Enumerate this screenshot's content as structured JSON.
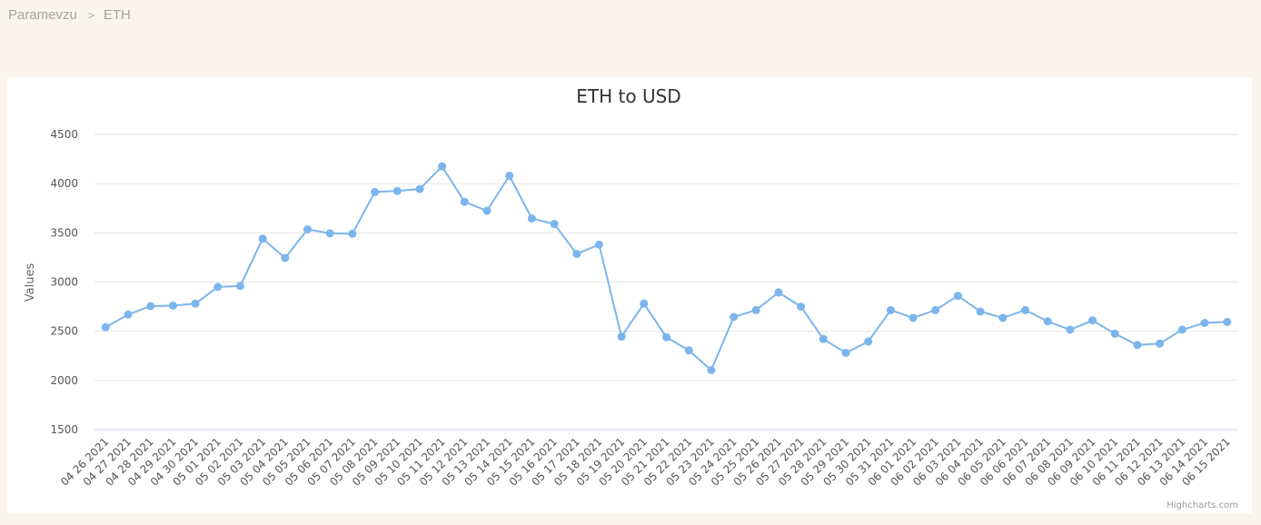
{
  "breadcrumb": {
    "items": [
      "Paramevzu",
      "ETH"
    ],
    "separator": ">"
  },
  "credits": "Highcharts.com",
  "colors": {
    "series": "#7cb5ec",
    "grid": "#e6e6e6",
    "axis": "#ccd6eb",
    "page_bg": "#f9f5ee"
  },
  "chart_data": {
    "type": "line",
    "title": "ETH to USD",
    "xlabel": "",
    "ylabel": "Values",
    "ylim": [
      1500,
      4500
    ],
    "yticks": [
      1500,
      2000,
      2500,
      3000,
      3500,
      4000,
      4500
    ],
    "grid": true,
    "legend": "none",
    "categories": [
      "04 26 2021",
      "04 27 2021",
      "04 28 2021",
      "04 29 2021",
      "04 30 2021",
      "05 01 2021",
      "05 02 2021",
      "05 03 2021",
      "05 04 2021",
      "05 05 2021",
      "05 06 2021",
      "05 07 2021",
      "05 08 2021",
      "05 09 2021",
      "05 10 2021",
      "05 11 2021",
      "05 12 2021",
      "05 13 2021",
      "05 14 2021",
      "05 15 2021",
      "05 16 2021",
      "05 17 2021",
      "05 18 2021",
      "05 19 2021",
      "05 20 2021",
      "05 21 2021",
      "05 22 2021",
      "05 23 2021",
      "05 24 2021",
      "05 25 2021",
      "05 26 2021",
      "05 27 2021",
      "05 28 2021",
      "05 29 2021",
      "05 30 2021",
      "05 31 2021",
      "06 01 2021",
      "06 02 2021",
      "06 03 2021",
      "06 04 2021",
      "06 05 2021",
      "06 06 2021",
      "06 07 2021",
      "06 08 2021",
      "06 09 2021",
      "06 10 2021",
      "06 11 2021",
      "06 12 2021",
      "06 13 2021",
      "06 14 2021",
      "06 15 2021"
    ],
    "series": [
      {
        "values": [
          2540,
          2670,
          2755,
          2760,
          2780,
          2950,
          2960,
          3440,
          3245,
          3535,
          3495,
          3490,
          3915,
          3925,
          3945,
          4175,
          3815,
          3725,
          4080,
          3645,
          3590,
          3285,
          3380,
          2445,
          2780,
          2440,
          2305,
          2105,
          2645,
          2715,
          2895,
          2750,
          2420,
          2280,
          2395,
          2715,
          2635,
          2715,
          2860,
          2700,
          2635,
          2715,
          2600,
          2515,
          2610,
          2475,
          2360,
          2375,
          2515,
          2585,
          2595
        ]
      }
    ]
  }
}
